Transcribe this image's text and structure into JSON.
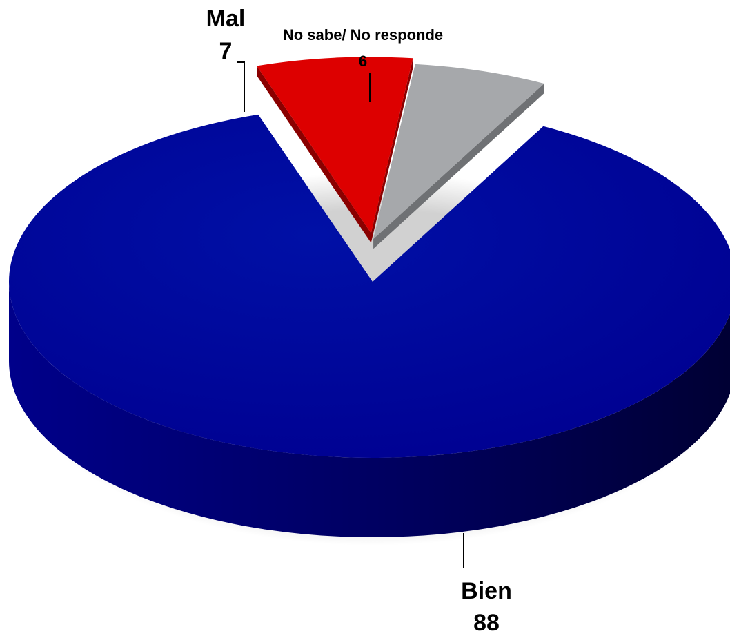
{
  "chart_data": {
    "type": "pie",
    "title": "",
    "slices": [
      {
        "label": "Bien",
        "value": 88,
        "color": "#000099"
      },
      {
        "label": "Mal",
        "value": 7,
        "color": "#dd0000"
      },
      {
        "label": "No sabe/ No responde",
        "value": 6,
        "color": "#a6a8ab"
      }
    ],
    "style": "3d",
    "legend": "none"
  }
}
